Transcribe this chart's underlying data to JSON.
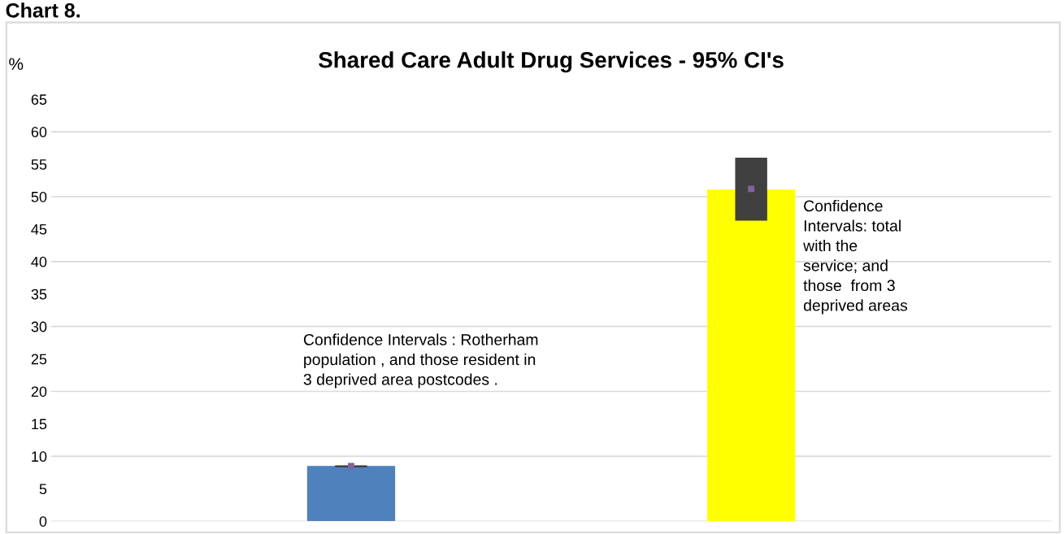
{
  "chart_data": {
    "type": "bar",
    "title": "Shared Care Adult Drug Services - 95% CI's",
    "ylabel": "%",
    "categories": [
      null,
      null
    ],
    "series": [
      {
        "colors": [
          "#4f81bd",
          "#ffff00"
        ],
        "values": [
          8.5,
          51.1
        ]
      },
      {
        "type": "bar",
        "color": "#404040",
        "base": [
          8.3,
          46.3
        ],
        "values": [
          0.3,
          9.7
        ]
      },
      {
        "type": "scatter",
        "color": "#8064a2",
        "values": [
          8.5,
          51.2
        ]
      }
    ],
    "ylim": [
      0,
      65
    ],
    "yticks": [
      0,
      5,
      10,
      15,
      20,
      25,
      30,
      35,
      40,
      45,
      50,
      55,
      60,
      65
    ],
    "grid": "y",
    "legend": false,
    "marker": "square",
    "annotations": [
      "Chart 8.",
      "Confidence Intervals : Rotherham\npopulation , and those resident in\n3 deprived area postcodes .",
      "Confidence\nIntervals: total\nwith the\nservice; and\nthose  from 3\ndeprived areas"
    ]
  }
}
